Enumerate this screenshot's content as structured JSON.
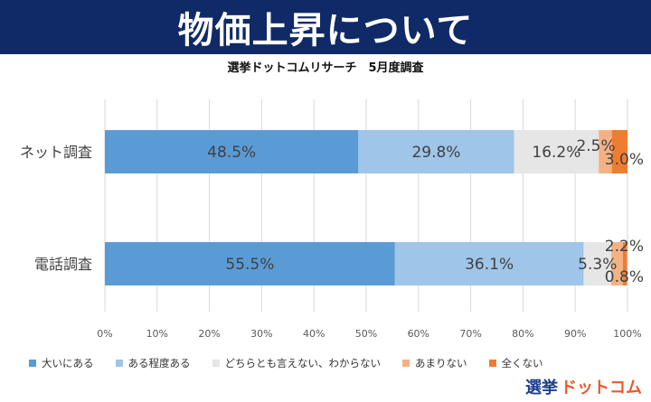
{
  "header": {
    "title": "物価上昇について"
  },
  "colors": {
    "header_bg": "#0f2a66",
    "series": [
      "#5b9bd5",
      "#9fc5e8",
      "#e6e6e6",
      "#f4b183",
      "#ed7d31"
    ],
    "brand_main": "#1c3f8f",
    "brand_accent": "#e75b2c"
  },
  "chart_data": {
    "type": "bar",
    "orientation": "horizontal",
    "stacked": true,
    "title": "選挙ドットコムリサーチ　5月度調査",
    "categories": [
      "ネット調査",
      "電話調査"
    ],
    "series": [
      {
        "name": "大いにある",
        "values": [
          48.5,
          55.5
        ],
        "labels": [
          "48.5%",
          "55.5%"
        ]
      },
      {
        "name": "ある程度ある",
        "values": [
          29.8,
          36.1
        ],
        "labels": [
          "29.8%",
          "36.1%"
        ]
      },
      {
        "name": "どちらとも言えない、わからない",
        "values": [
          16.2,
          5.3
        ],
        "labels": [
          "16.2%",
          "5.3%"
        ]
      },
      {
        "name": "あまりない",
        "values": [
          2.5,
          2.2
        ],
        "labels": [
          "2.5%",
          "2.2%"
        ]
      },
      {
        "name": "全くない",
        "values": [
          3.0,
          0.8
        ],
        "labels": [
          "3.0%",
          "0.8%"
        ]
      }
    ],
    "xlim": [
      0,
      100
    ],
    "xticks": [
      "0%",
      "10%",
      "20%",
      "30%",
      "40%",
      "50%",
      "60%",
      "70%",
      "80%",
      "90%",
      "100%"
    ],
    "grid": true,
    "legend_position": "bottom"
  },
  "brand": {
    "main": "選挙",
    "accent": "ドットコム"
  }
}
